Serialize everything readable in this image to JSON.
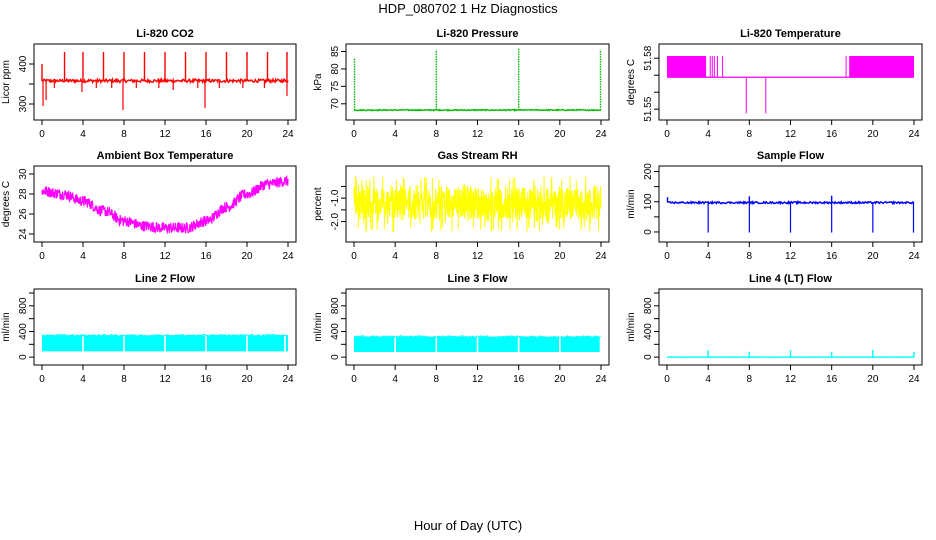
{
  "figure": {
    "title": "HDP_080702  1 Hz Diagnostics",
    "xlabel": "Hour of Day (UTC)"
  },
  "chart_data": [
    {
      "type": "line",
      "title": "Li-820 CO2",
      "ylabel": "Licor ppm",
      "color": "#ff0000",
      "xlim": [
        0,
        24
      ],
      "xticks": [
        0,
        4,
        8,
        12,
        16,
        20,
        24
      ],
      "ylim": [
        270,
        440
      ],
      "yticks": [
        300,
        350,
        400
      ],
      "ytick_labels": [
        "300",
        "",
        "400"
      ],
      "series": [
        {
          "baseline": 358,
          "noise": 4,
          "spikes_up": [
            [
              0,
              400
            ],
            [
              2.2,
              430
            ],
            [
              4.0,
              430
            ],
            [
              6.0,
              430
            ],
            [
              8.0,
              430
            ],
            [
              10.0,
              430
            ],
            [
              12.0,
              430
            ],
            [
              14.0,
              430
            ],
            [
              16.0,
              430
            ],
            [
              18.0,
              430
            ],
            [
              20.0,
              430
            ],
            [
              22.0,
              430
            ],
            [
              23.9,
              430
            ]
          ],
          "spikes_down": [
            [
              0.1,
              295
            ],
            [
              0.4,
              310
            ],
            [
              1.2,
              340
            ],
            [
              3.9,
              330
            ],
            [
              5.3,
              340
            ],
            [
              6.8,
              340
            ],
            [
              7.9,
              285
            ],
            [
              9.2,
              340
            ],
            [
              11.4,
              340
            ],
            [
              12.8,
              335
            ],
            [
              15.2,
              340
            ],
            [
              15.9,
              290
            ],
            [
              17.3,
              340
            ],
            [
              19.6,
              340
            ],
            [
              21.7,
              340
            ],
            [
              23.9,
              320
            ]
          ]
        }
      ]
    },
    {
      "type": "line",
      "title": "Li-820 Pressure",
      "ylabel": "kPa",
      "color": "#00bb00",
      "xlim": [
        0,
        24
      ],
      "xticks": [
        0,
        4,
        8,
        12,
        16,
        20,
        24
      ],
      "ylim": [
        66.5,
        86
      ],
      "yticks": [
        70,
        75,
        80,
        85
      ],
      "ytick_labels": [
        "70",
        "75",
        "80",
        "85"
      ],
      "series": [
        {
          "baseline": 68.2,
          "noise": 0.15,
          "spikes_up": [
            [
              0.05,
              83
            ],
            [
              8.0,
              85.5
            ],
            [
              16.0,
              86
            ],
            [
              23.95,
              85.5
            ]
          ],
          "spikes_down": []
        }
      ]
    },
    {
      "type": "line",
      "title": "Li-820 Temperature",
      "ylabel": "degrees C",
      "color": "#ff00ff",
      "xlim": [
        0,
        24
      ],
      "xticks": [
        0,
        4,
        8,
        12,
        16,
        20,
        24
      ],
      "ylim": [
        51.546,
        51.586
      ],
      "yticks": [
        51.55,
        51.56,
        51.57,
        51.58
      ],
      "ytick_labels": [
        "51.55",
        "",
        "",
        "51.58"
      ],
      "series": [
        {
          "baseline": 51.5688,
          "high": 51.5813,
          "high_band": [
            [
              0,
              3.8
            ],
            [
              17.7,
              24
            ]
          ],
          "flicker_hours": [
            4.2,
            4.4,
            4.6,
            4.9,
            5.4,
            17.4
          ],
          "spikes_down": [
            [
              7.7,
              51.5475
            ],
            [
              9.6,
              51.5475
            ]
          ]
        }
      ]
    },
    {
      "type": "line",
      "title": "Ambient Box Temperature",
      "ylabel": "degrees C",
      "color": "#ff00ff",
      "xlim": [
        0,
        24
      ],
      "xticks": [
        0,
        4,
        8,
        12,
        16,
        20,
        24
      ],
      "ylim": [
        23.6,
        30.4
      ],
      "yticks": [
        24,
        26,
        28,
        30
      ],
      "ytick_labels": [
        "24",
        "26",
        "28",
        "30"
      ],
      "series": [
        {
          "x": [
            0,
            2,
            4,
            6,
            8,
            10,
            12,
            14,
            16,
            18,
            20,
            22,
            24
          ],
          "y": [
            28.3,
            28.0,
            27.3,
            26.3,
            25.3,
            24.8,
            24.6,
            24.6,
            25.3,
            26.7,
            28.0,
            29.0,
            29.3
          ],
          "band_halfwidth": 0.55
        }
      ]
    },
    {
      "type": "line",
      "title": "Gas Stream RH",
      "ylabel": "percent",
      "color": "#ffff00",
      "xlim": [
        0,
        24
      ],
      "xticks": [
        0,
        4,
        8,
        12,
        16,
        20,
        24
      ],
      "ylim": [
        -2.7,
        0.2
      ],
      "yticks": [
        -2.0,
        -1.5,
        -1.0,
        -0.5
      ],
      "ytick_labels": [
        "-2.0",
        "",
        "-1.0",
        ""
      ],
      "series": [
        {
          "baseline": -1.25,
          "band_halfwidth": 0.9,
          "min": -2.45,
          "max": -0.05
        }
      ]
    },
    {
      "type": "line",
      "title": "Sample Flow",
      "ylabel": "ml/min",
      "color": "#0000ff",
      "xlim": [
        0,
        24
      ],
      "xticks": [
        0,
        4,
        8,
        12,
        16,
        20,
        24
      ],
      "ylim": [
        -20,
        205
      ],
      "yticks": [
        0,
        50,
        100,
        150,
        200
      ],
      "ytick_labels": [
        "0",
        "",
        "100",
        "",
        "200"
      ],
      "series": [
        {
          "baseline": 97,
          "noise": 3,
          "spikes_up": [
            [
              0.05,
              115
            ],
            [
              8.0,
              118
            ],
            [
              16.0,
              120
            ]
          ],
          "spikes_down": [
            [
              4.0,
              -2
            ],
            [
              8.0,
              -2
            ],
            [
              12.0,
              -2
            ],
            [
              16.0,
              -2
            ],
            [
              20.0,
              -2
            ],
            [
              23.95,
              -2
            ]
          ]
        }
      ]
    },
    {
      "type": "line",
      "title": "Line 2 Flow",
      "ylabel": "ml/min",
      "color": "#00ffff",
      "xlim": [
        0,
        24
      ],
      "xticks": [
        0,
        4,
        8,
        12,
        16,
        20,
        24
      ],
      "ylim": [
        -60,
        1000
      ],
      "yticks": [
        0,
        200,
        400,
        600,
        800,
        1000
      ],
      "ytick_labels": [
        "0",
        "",
        "400",
        "",
        "800",
        ""
      ],
      "series": [
        {
          "band_low": 90,
          "band_high": 340,
          "gaps": [
            4.0,
            8.0,
            12.0,
            16.0,
            20.0,
            23.7
          ]
        }
      ]
    },
    {
      "type": "line",
      "title": "Line 3 Flow",
      "ylabel": "ml/min",
      "color": "#00ffff",
      "xlim": [
        0,
        24
      ],
      "xticks": [
        0,
        4,
        8,
        12,
        16,
        20,
        24
      ],
      "ylim": [
        -60,
        1000
      ],
      "yticks": [
        0,
        200,
        400,
        600,
        800,
        1000
      ],
      "ytick_labels": [
        "0",
        "",
        "400",
        "",
        "800",
        ""
      ],
      "series": [
        {
          "band_low": 80,
          "band_high": 320,
          "gaps": [
            4.0,
            8.0,
            12.0,
            16.0,
            20.0,
            23.95
          ]
        }
      ]
    },
    {
      "type": "line",
      "title": "Line 4 (LT) Flow",
      "ylabel": "ml/min",
      "color": "#00ffff",
      "xlim": [
        0,
        24
      ],
      "xticks": [
        0,
        4,
        8,
        12,
        16,
        20,
        24
      ],
      "ylim": [
        -60,
        1000
      ],
      "yticks": [
        0,
        200,
        400,
        600,
        800,
        1000
      ],
      "ytick_labels": [
        "0",
        "",
        "400",
        "",
        "800",
        ""
      ],
      "series": [
        {
          "baseline": 0,
          "noise": 2,
          "spikes_up": [
            [
              4.0,
              110
            ],
            [
              8.0,
              85
            ],
            [
              12.0,
              110
            ],
            [
              16.0,
              80
            ],
            [
              20.0,
              110
            ],
            [
              24.0,
              80
            ]
          ],
          "spikes_down": []
        }
      ]
    }
  ]
}
